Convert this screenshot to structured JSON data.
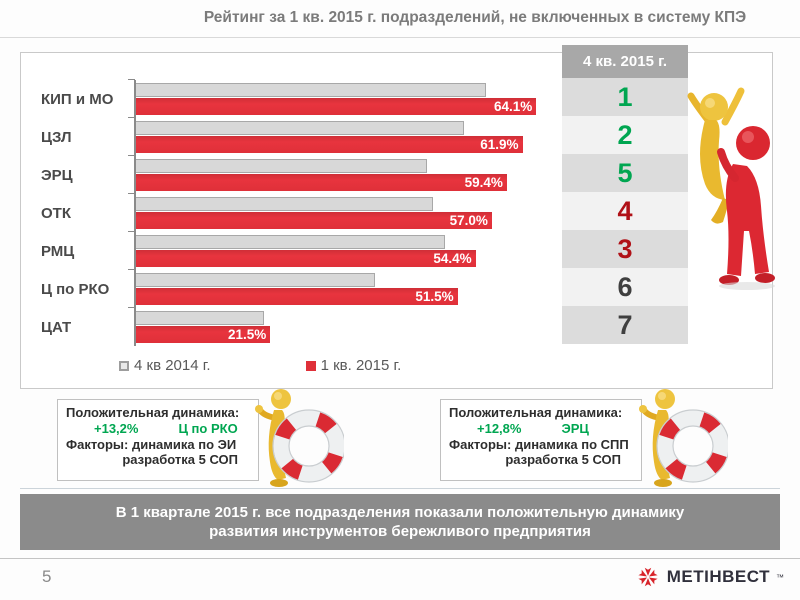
{
  "slide": {
    "title": "Рейтинг за 1 кв. 2015 г. подразделений, не включенных в систему КПЭ"
  },
  "chart_data": {
    "type": "bar",
    "orientation": "horizontal",
    "title": "",
    "xlabel": "",
    "ylabel": "",
    "xlim": [
      0,
      66.3
    ],
    "grid": false,
    "legend_position": "bottom",
    "categories": [
      "КИП и МО",
      "ЦЗЛ",
      "ЭРЦ",
      "ОТК",
      "РМЦ",
      "Ц по РКО",
      "ЦАТ"
    ],
    "series": [
      {
        "name": "4 кв 2014 г.",
        "color": "#d8d8d8",
        "values": [
          56.0,
          52.5,
          46.6,
          47.5,
          49.5,
          38.3,
          20.5
        ],
        "note": "values estimated from bar lengths; ЭРЦ and Ц по РКО derived from callout deltas"
      },
      {
        "name": "1 кв. 2015 г.",
        "color": "#df3039",
        "values": [
          64.1,
          61.9,
          59.4,
          57.0,
          54.4,
          51.5,
          21.5
        ],
        "labels": [
          "64.1%",
          "61.9%",
          "59.4%",
          "57.0%",
          "54.4%",
          "51.5%",
          "21.5%"
        ]
      }
    ]
  },
  "rank_table": {
    "header": "4 кв. 2015 г.",
    "rows": [
      {
        "value": "1",
        "color": "#00A651"
      },
      {
        "value": "2",
        "color": "#00A651"
      },
      {
        "value": "5",
        "color": "#00A651"
      },
      {
        "value": "4",
        "color": "#B01117"
      },
      {
        "value": "3",
        "color": "#B01117"
      },
      {
        "value": "6",
        "color": "#3F3F3F"
      },
      {
        "value": "7",
        "color": "#3F3F3F"
      }
    ]
  },
  "callouts": [
    {
      "heading": "Положительная динамика:",
      "delta": "+13,2%",
      "unit": "Ц по РКО",
      "factors": "Факторы: динамика по ЭИ",
      "factors2": "разработка 5 СОП"
    },
    {
      "heading": "Положительная динамика:",
      "delta": "+12,8%",
      "unit": "ЭРЦ",
      "factors": "Факторы: динамика по СПП",
      "factors2": "разработка 5 СОП"
    }
  ],
  "banner": {
    "line1": "В 1 квартале  2015 г. все подразделения показали положительную динамику",
    "line2": "развития инструментов бережливого предприятия"
  },
  "footer": {
    "page_number": "5",
    "logo_text": "МЕТІНВЕСТ",
    "logo_tm": "™"
  },
  "colors": {
    "accent_red": "#df3039",
    "positive_green": "#00A651",
    "negative_red": "#B01117",
    "neutral_dark": "#3F3F3F",
    "bar_gray": "#d8d8d8",
    "banner_gray": "#8b8b8b",
    "table_header_gray": "#a8a8a8",
    "title_gray": "#7b7b7b"
  },
  "icons": {
    "prev-quarter-legend-swatch": "outlined gray square",
    "current-quarter-legend-swatch": "filled red square",
    "piggyback-figures-illustration": "red 3D figure carrying yellow 3D figure",
    "thumbsup-lifering-icon": "gold 3D figure with life ring",
    "metinvest-logo-icon": "six-petal red star"
  }
}
